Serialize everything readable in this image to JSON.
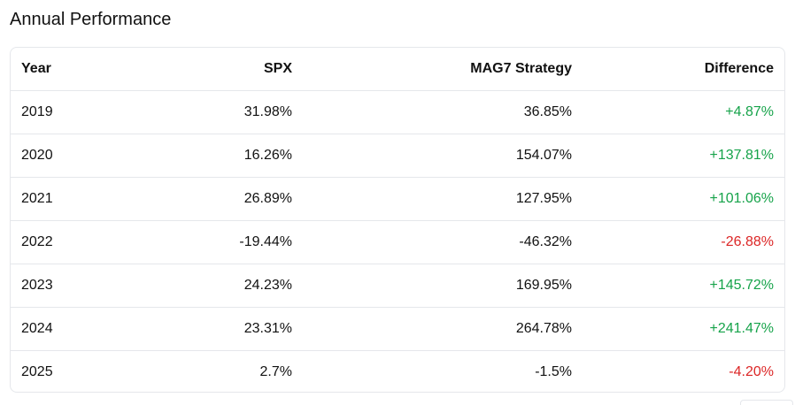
{
  "section_title": "Annual Performance",
  "table": {
    "headers": {
      "year": "Year",
      "spx": "SPX",
      "strategy": "MAG7 Strategy",
      "difference": "Difference"
    },
    "rows": [
      {
        "year": "2019",
        "spx": "31.98%",
        "strategy": "36.85%",
        "difference": "+4.87%",
        "sign": "positive"
      },
      {
        "year": "2020",
        "spx": "16.26%",
        "strategy": "154.07%",
        "difference": "+137.81%",
        "sign": "positive"
      },
      {
        "year": "2021",
        "spx": "26.89%",
        "strategy": "127.95%",
        "difference": "+101.06%",
        "sign": "positive"
      },
      {
        "year": "2022",
        "spx": "-19.44%",
        "strategy": "-46.32%",
        "difference": "-26.88%",
        "sign": "negative"
      },
      {
        "year": "2023",
        "spx": "24.23%",
        "strategy": "169.95%",
        "difference": "+145.72%",
        "sign": "positive"
      },
      {
        "year": "2024",
        "spx": "23.31%",
        "strategy": "264.78%",
        "difference": "+241.47%",
        "sign": "positive"
      },
      {
        "year": "2025",
        "spx": "2.7%",
        "strategy": "-1.5%",
        "difference": "-4.20%",
        "sign": "negative"
      }
    ]
  },
  "colors": {
    "positive": "#16a34a",
    "negative": "#dc2626",
    "border": "#e5e7eb"
  }
}
